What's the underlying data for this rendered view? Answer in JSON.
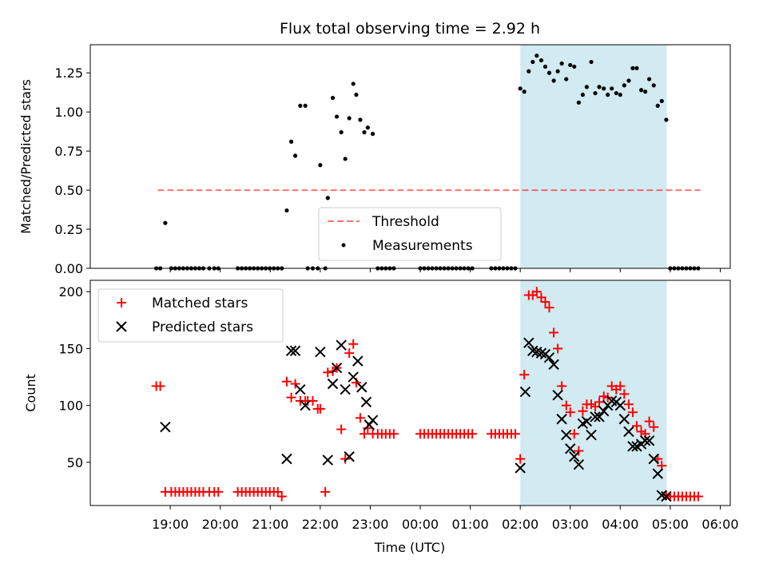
{
  "chart_data": [
    {
      "type": "scatter",
      "title": "Flux total observing time = 2.92 h",
      "xlabel": "",
      "ylabel": "Matched/Predicted stars",
      "x_unit": "hours after 18:00 UTC",
      "xlim": [
        17.4,
        30.2
      ],
      "ylim": [
        0.0,
        1.43
      ],
      "yticks": [
        0.0,
        0.25,
        0.5,
        0.75,
        1.0,
        1.25
      ],
      "ytick_labels": [
        "0.00",
        "0.25",
        "0.50",
        "0.75",
        "1.00",
        "1.25"
      ],
      "highlight_span": {
        "x0": 26.0,
        "x1": 28.93,
        "color": "#add8e6"
      },
      "threshold": {
        "name": "Threshold",
        "y": 0.5,
        "x0": 18.75,
        "x1": 29.6,
        "color": "#ff0000",
        "style": "dashed"
      },
      "legend": {
        "position": "lower-center",
        "entries": [
          "Threshold",
          "Measurements"
        ]
      },
      "series": [
        {
          "name": "Measurements",
          "marker": "dot",
          "color": "#000000",
          "x": [
            18.72,
            18.8,
            18.9,
            19.02,
            19.1,
            19.18,
            19.26,
            19.34,
            19.42,
            19.5,
            19.58,
            19.66,
            19.78,
            19.88,
            19.96,
            20.35,
            20.43,
            20.51,
            20.59,
            20.67,
            20.75,
            20.83,
            20.91,
            20.99,
            21.07,
            21.15,
            21.23,
            21.33,
            21.42,
            21.5,
            21.6,
            21.7,
            21.75,
            21.85,
            21.95,
            22.0,
            22.1,
            22.15,
            22.25,
            22.33,
            22.42,
            22.5,
            22.58,
            22.66,
            22.72,
            22.8,
            22.88,
            22.95,
            23.05,
            23.15,
            23.23,
            23.31,
            23.39,
            23.47,
            24.0,
            24.08,
            24.16,
            24.24,
            24.32,
            24.4,
            24.48,
            24.56,
            24.64,
            24.72,
            24.8,
            24.88,
            24.96,
            25.04,
            25.42,
            25.5,
            25.58,
            25.66,
            25.74,
            25.82,
            25.9,
            26.0,
            26.08,
            26.17,
            26.25,
            26.33,
            26.42,
            26.5,
            26.58,
            26.67,
            26.75,
            26.83,
            26.92,
            27.0,
            27.08,
            27.17,
            27.25,
            27.33,
            27.42,
            27.5,
            27.58,
            27.67,
            27.75,
            27.83,
            27.92,
            28.0,
            28.08,
            28.17,
            28.25,
            28.33,
            28.42,
            28.5,
            28.58,
            28.67,
            28.75,
            28.83,
            28.92,
            29.0,
            29.08,
            29.16,
            29.24,
            29.32,
            29.4,
            29.48,
            29.56
          ],
          "y": [
            0.0,
            0.0,
            0.29,
            0.0,
            0.0,
            0.0,
            0.0,
            0.0,
            0.0,
            0.0,
            0.0,
            0.0,
            0.0,
            0.0,
            0.0,
            0.0,
            0.0,
            0.0,
            0.0,
            0.0,
            0.0,
            0.0,
            0.0,
            0.0,
            0.0,
            0.0,
            0.0,
            0.37,
            0.81,
            0.72,
            1.04,
            1.04,
            0.0,
            0.0,
            0.0,
            0.66,
            0.0,
            0.45,
            1.09,
            0.97,
            0.87,
            0.7,
            0.96,
            1.18,
            1.11,
            0.95,
            0.87,
            0.9,
            0.86,
            0.0,
            0.0,
            0.0,
            0.0,
            0.0,
            0.0,
            0.0,
            0.0,
            0.0,
            0.0,
            0.0,
            0.0,
            0.0,
            0.0,
            0.0,
            0.0,
            0.0,
            0.0,
            0.0,
            0.0,
            0.0,
            0.0,
            0.0,
            0.0,
            0.0,
            0.0,
            1.15,
            1.13,
            1.26,
            1.32,
            1.36,
            1.33,
            1.29,
            1.25,
            1.2,
            1.26,
            1.31,
            1.21,
            1.3,
            1.29,
            1.06,
            1.11,
            1.16,
            1.32,
            1.12,
            1.16,
            1.15,
            1.11,
            1.15,
            1.12,
            1.11,
            1.17,
            1.2,
            1.28,
            1.28,
            1.14,
            1.13,
            1.21,
            1.17,
            1.04,
            1.07,
            0.95,
            0.0,
            0.0,
            0.0,
            0.0,
            0.0,
            0.0,
            0.0,
            0.0
          ]
        }
      ]
    },
    {
      "type": "scatter",
      "title": "",
      "xlabel": "Time (UTC)",
      "ylabel": "Count",
      "x_unit": "hours after 18:00 UTC",
      "xlim": [
        17.4,
        30.2
      ],
      "ylim": [
        12,
        210
      ],
      "yticks": [
        50,
        100,
        150,
        200
      ],
      "xticks": [
        19,
        20,
        21,
        22,
        23,
        24,
        25,
        26,
        27,
        28,
        29,
        30
      ],
      "xtick_labels": [
        "19:00",
        "20:00",
        "21:00",
        "22:00",
        "23:00",
        "00:00",
        "01:00",
        "02:00",
        "03:00",
        "04:00",
        "05:00",
        "06:00"
      ],
      "highlight_span": {
        "x0": 26.0,
        "x1": 28.93,
        "color": "#add8e6"
      },
      "legend": {
        "position": "top-left",
        "entries": [
          "Matched stars",
          "Predicted stars"
        ]
      },
      "series": [
        {
          "name": "Matched stars",
          "marker": "plus",
          "color": "#ff0000",
          "x": [
            18.72,
            18.8,
            18.9,
            19.02,
            19.1,
            19.18,
            19.26,
            19.34,
            19.42,
            19.5,
            19.58,
            19.66,
            19.78,
            19.88,
            19.96,
            20.35,
            20.43,
            20.51,
            20.59,
            20.67,
            20.75,
            20.83,
            20.91,
            20.99,
            21.07,
            21.15,
            21.23,
            21.33,
            21.42,
            21.5,
            21.6,
            21.7,
            21.75,
            21.85,
            21.95,
            22.0,
            22.1,
            22.15,
            22.25,
            22.33,
            22.42,
            22.5,
            22.58,
            22.66,
            22.72,
            22.8,
            22.88,
            22.95,
            23.05,
            23.15,
            23.23,
            23.31,
            23.39,
            23.47,
            24.0,
            24.08,
            24.16,
            24.24,
            24.32,
            24.4,
            24.48,
            24.56,
            24.64,
            24.72,
            24.8,
            24.88,
            24.96,
            25.04,
            25.42,
            25.5,
            25.58,
            25.66,
            25.74,
            25.82,
            25.9,
            26.0,
            26.08,
            26.17,
            26.25,
            26.33,
            26.42,
            26.5,
            26.58,
            26.67,
            26.75,
            26.83,
            26.92,
            27.0,
            27.08,
            27.17,
            27.25,
            27.33,
            27.42,
            27.5,
            27.58,
            27.67,
            27.75,
            27.83,
            27.92,
            28.0,
            28.08,
            28.17,
            28.25,
            28.33,
            28.42,
            28.5,
            28.58,
            28.67,
            28.75,
            28.83,
            28.92,
            29.0,
            29.08,
            29.16,
            29.24,
            29.32,
            29.4,
            29.48,
            29.56
          ],
          "y": [
            117,
            117,
            24,
            24,
            24,
            24,
            24,
            24,
            24,
            24,
            24,
            24,
            24,
            24,
            24,
            24,
            24,
            24,
            24,
            24,
            24,
            24,
            24,
            24,
            24,
            24,
            20,
            121,
            107,
            119,
            104,
            104,
            104,
            104,
            97,
            97,
            24,
            129,
            130,
            133,
            79,
            53,
            146,
            154,
            120,
            89,
            75,
            80,
            75,
            75,
            75,
            75,
            75,
            75,
            75,
            75,
            75,
            75,
            75,
            75,
            75,
            75,
            75,
            75,
            75,
            75,
            75,
            75,
            75,
            75,
            75,
            75,
            75,
            75,
            75,
            53,
            127,
            197,
            197,
            200,
            195,
            191,
            186,
            164,
            150,
            117,
            100,
            94,
            75,
            60,
            95,
            101,
            101,
            99,
            103,
            108,
            107,
            117,
            114,
            117,
            110,
            101,
            94,
            82,
            77,
            75,
            86,
            81,
            53,
            47,
            21,
            20,
            20,
            20,
            20,
            20,
            20,
            20,
            20
          ]
        },
        {
          "name": "Predicted stars",
          "marker": "x",
          "color": "#000000",
          "x": [
            18.9,
            21.33,
            21.42,
            21.5,
            21.6,
            21.7,
            22.0,
            22.15,
            22.25,
            22.33,
            22.42,
            22.5,
            22.58,
            22.66,
            22.75,
            22.83,
            22.92,
            22.98,
            23.05,
            26.0,
            26.1,
            26.17,
            26.25,
            26.33,
            26.42,
            26.5,
            26.58,
            26.67,
            26.75,
            26.83,
            26.92,
            27.0,
            27.08,
            27.17,
            27.25,
            27.33,
            27.42,
            27.5,
            27.58,
            27.67,
            27.75,
            27.83,
            27.92,
            28.0,
            28.08,
            28.17,
            28.25,
            28.33,
            28.42,
            28.5,
            28.58,
            28.67,
            28.75,
            28.83,
            28.92
          ],
          "y": [
            81,
            53,
            148,
            148,
            114,
            100,
            147,
            52,
            119,
            133,
            153,
            114,
            55,
            125,
            139,
            116,
            103,
            83,
            87,
            45,
            112,
            155,
            148,
            147,
            146,
            145,
            142,
            136,
            109,
            88,
            74,
            62,
            55,
            48,
            84,
            86,
            74,
            90,
            90,
            95,
            100,
            104,
            103,
            100,
            88,
            77,
            64,
            64,
            66,
            69,
            69,
            53,
            40,
            21,
            20
          ]
        }
      ]
    }
  ]
}
